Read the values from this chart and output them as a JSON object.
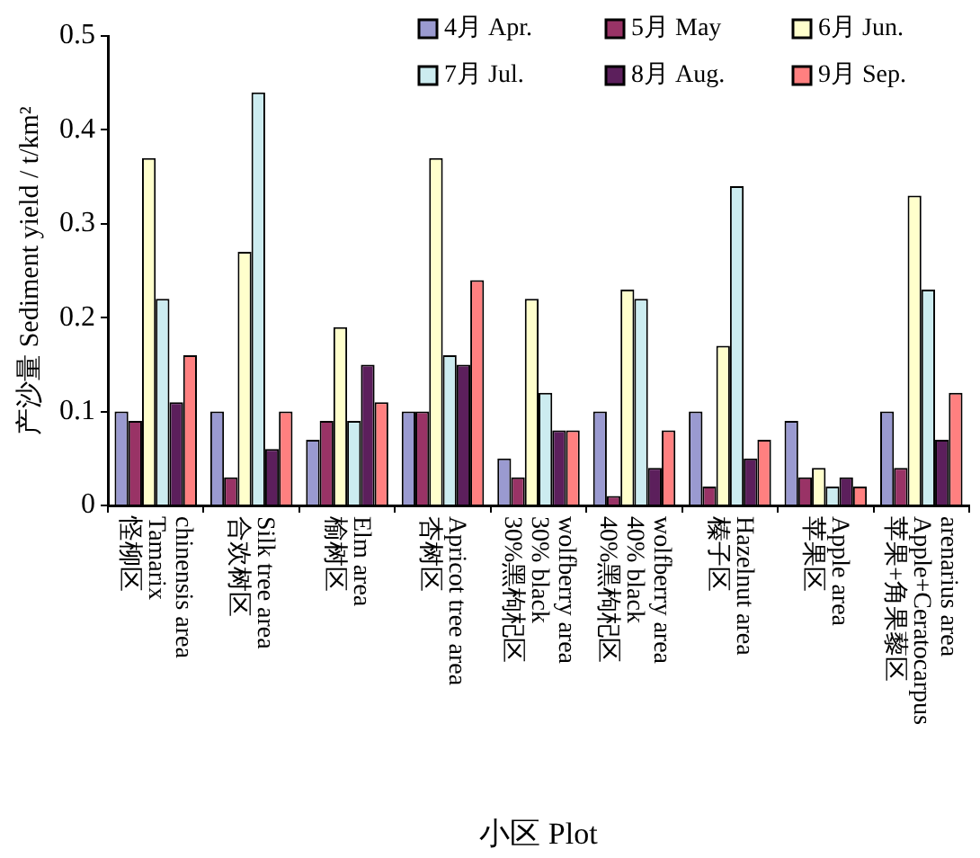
{
  "chart_data": {
    "type": "bar",
    "xlabel": "小区 Plot",
    "ylabel": "产沙量 Sediment yield / t/km²",
    "categories": [
      "怪柳区\nTamarix\nchinensis area",
      "合欢树区\nSilk tree area",
      "榆树区\nElm area",
      "杏树区\nApricot tree area",
      "30%黑枸杞区\n30% black\nwolfberry area",
      "40%黑枸杞区\n40% black\nwolfberry area",
      "榛子区\nHazelnut area",
      "苹果区\nApple area",
      "苹果+角果藜区\nApple+Ceratocarpus\narenarius area"
    ],
    "series": [
      {
        "name": "4月 Apr.",
        "color": "#9a9ad0",
        "values": [
          0.1,
          0.1,
          0.07,
          0.1,
          0.05,
          0.1,
          0.1,
          0.09,
          0.1
        ]
      },
      {
        "name": "5月 May",
        "color": "#993366",
        "values": [
          0.09,
          0.03,
          0.09,
          0.1,
          0.03,
          0.01,
          0.02,
          0.03,
          0.04
        ]
      },
      {
        "name": "6月 Jun.",
        "color": "#ffffcc",
        "values": [
          0.37,
          0.27,
          0.19,
          0.37,
          0.22,
          0.23,
          0.17,
          0.04,
          0.33
        ]
      },
      {
        "name": "7月 Jul.",
        "color": "#ccecf0",
        "values": [
          0.22,
          0.44,
          0.09,
          0.16,
          0.12,
          0.22,
          0.34,
          0.02,
          0.23
        ]
      },
      {
        "name": "8月 Aug.",
        "color": "#5c1f5c",
        "values": [
          0.11,
          0.06,
          0.15,
          0.15,
          0.08,
          0.04,
          0.05,
          0.03,
          0.07
        ]
      },
      {
        "name": "9月 Sep.",
        "color": "#ff8080",
        "values": [
          0.16,
          0.1,
          0.11,
          0.24,
          0.08,
          0.08,
          0.07,
          0.02,
          0.12
        ]
      }
    ],
    "ylim": [
      0,
      0.5
    ],
    "yticks": [
      0,
      0.1,
      0.2,
      0.3,
      0.4,
      0.5
    ],
    "legend": "top right"
  }
}
